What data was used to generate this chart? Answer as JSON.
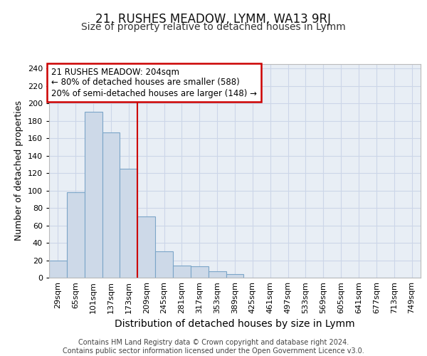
{
  "title": "21, RUSHES MEADOW, LYMM, WA13 9RJ",
  "subtitle": "Size of property relative to detached houses in Lymm",
  "xlabel": "Distribution of detached houses by size in Lymm",
  "ylabel": "Number of detached properties",
  "categories": [
    "29sqm",
    "65sqm",
    "101sqm",
    "137sqm",
    "173sqm",
    "209sqm",
    "245sqm",
    "281sqm",
    "317sqm",
    "353sqm",
    "389sqm",
    "425sqm",
    "461sqm",
    "497sqm",
    "533sqm",
    "569sqm",
    "605sqm",
    "641sqm",
    "677sqm",
    "713sqm",
    "749sqm"
  ],
  "values": [
    20,
    98,
    190,
    167,
    125,
    70,
    30,
    14,
    13,
    7,
    4,
    0,
    0,
    0,
    0,
    0,
    0,
    0,
    0,
    0,
    0
  ],
  "bar_color": "#cdd9e8",
  "bar_edge_color": "#7ba5c8",
  "vline_index": 5,
  "vline_color": "#cc0000",
  "annotation_text": "21 RUSHES MEADOW: 204sqm\n← 80% of detached houses are smaller (588)\n20% of semi-detached houses are larger (148) →",
  "annotation_box_facecolor": "#ffffff",
  "annotation_box_edgecolor": "#cc0000",
  "grid_color": "#ccd6e8",
  "background_color": "#e8eef5",
  "footer_text": "Contains HM Land Registry data © Crown copyright and database right 2024.\nContains public sector information licensed under the Open Government Licence v3.0.",
  "ylim": [
    0,
    245
  ],
  "yticks": [
    0,
    20,
    40,
    60,
    80,
    100,
    120,
    140,
    160,
    180,
    200,
    220,
    240
  ],
  "title_fontsize": 12,
  "subtitle_fontsize": 10,
  "xlabel_fontsize": 10,
  "ylabel_fontsize": 9,
  "tick_fontsize": 8,
  "footer_fontsize": 7,
  "annot_fontsize": 8.5
}
